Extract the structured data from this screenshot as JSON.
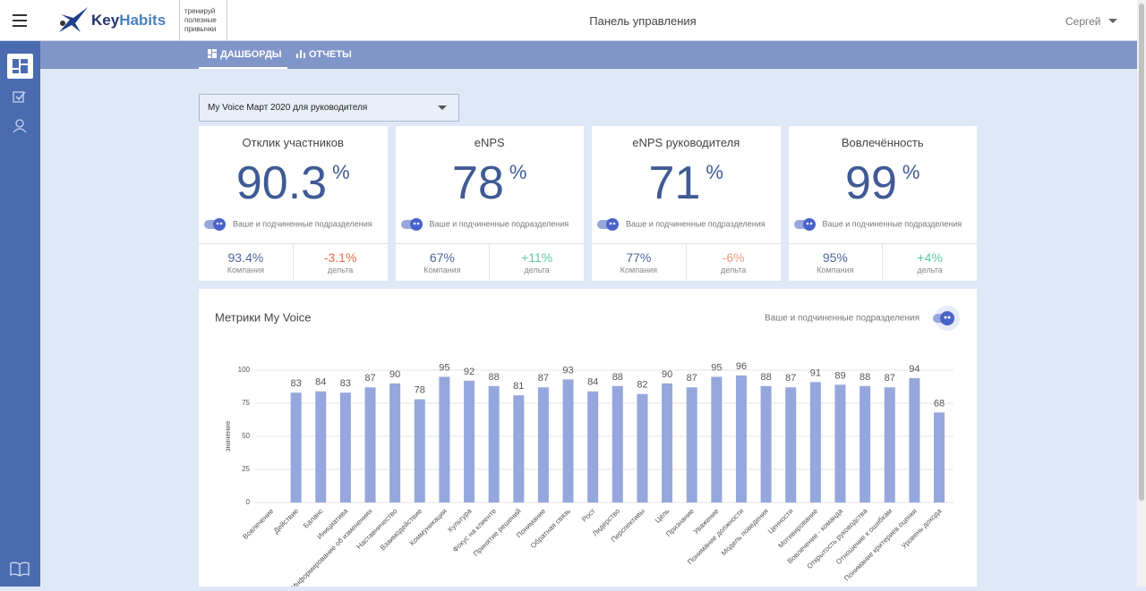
{
  "header": {
    "logo_key": "Key",
    "logo_habits": "Habits",
    "tagline": [
      "тренируй",
      "полезные",
      "привычки"
    ],
    "title": "Панель управления",
    "user": "Сергей"
  },
  "tabs": [
    "ДАШБОРДЫ",
    "ОТЧЕТЫ"
  ],
  "selector": "My Voice Март 2020 для руководителя",
  "cards": [
    {
      "title": "Отклик участников",
      "value": "90.3",
      "unit": "%",
      "toggle": "Ваше и подчиненные подразделения",
      "company": "93.4%",
      "company_label": "Компания",
      "delta": "-3.1%",
      "delta_label": "дельта",
      "delta_color": "#ea6a4a"
    },
    {
      "title": "eNPS",
      "value": "78",
      "unit": "%",
      "toggle": "Ваше и подчиненные подразделения",
      "company": "67%",
      "company_label": "Компания",
      "delta": "+11%",
      "delta_label": "дельта",
      "delta_color": "#5ec9a2"
    },
    {
      "title": "eNPS руководителя",
      "value": "71",
      "unit": "%",
      "toggle": "Ваше и подчиненные подразделения",
      "company": "77%",
      "company_label": "Компания",
      "delta": "-6%",
      "delta_label": "дельта",
      "delta_color": "#f19a80"
    },
    {
      "title": "Вовлечённость",
      "value": "99",
      "unit": "%",
      "toggle": "Ваше и подчиненные подразделения",
      "company": "95%",
      "company_label": "Компания",
      "delta": "+4%",
      "delta_label": "дельта",
      "delta_color": "#5ec9a2"
    }
  ],
  "chart_data": {
    "type": "bar",
    "title": "Метрики My Voice",
    "toggle": "Ваше и подчиненные подразделения",
    "y_label": "значение",
    "categories": [
      "Вовлечение",
      "Действие",
      "Баланс",
      "Инициатива",
      "Информирование об изменениях",
      "Наставничество",
      "Взаимодействие",
      "Коммуникации",
      "Культура",
      "Фокус на клиенте",
      "Принятие решений",
      "Понимание",
      "Обратная связь",
      "Рост",
      "Лидерство",
      "Перспективы",
      "Цель",
      "Признание",
      "Уважение",
      "Понимание должности",
      "Модель поведения",
      "Ценности",
      "Мотивирование",
      "Вовлечение - команда",
      "Открытость руководства",
      "Отношение к ошибкам",
      "Понимание критериев оценки",
      "Уровень дохода"
    ],
    "values": [
      null,
      83,
      84,
      83,
      87,
      90,
      78,
      95,
      92,
      88,
      81,
      87,
      93,
      84,
      88,
      82,
      90,
      87,
      95,
      96,
      88,
      87,
      91,
      89,
      88,
      87,
      94,
      68
    ],
    "color": "#95a7dc",
    "ylim": [
      0,
      100
    ],
    "yticks": [
      0,
      25,
      50,
      75,
      100
    ],
    "grid": true
  }
}
